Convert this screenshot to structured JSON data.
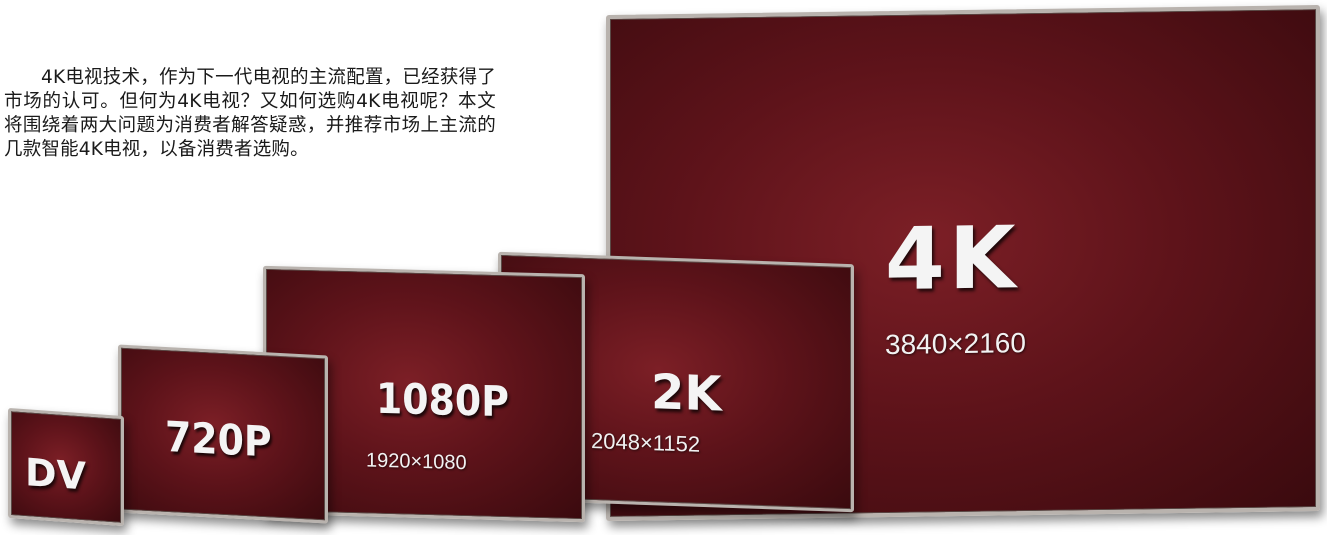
{
  "article": {
    "intro": "4K电视技术，作为下一代电视的主流配置，已经获得了市场的认可。但何为4K电视？又如何选购4K电视呢？本文将围绕着两大问题为消费者解答疑惑，并推荐市场上主流的几款智能4K电视，以备消费者选购。"
  },
  "figure": {
    "screens": [
      {
        "name": "DV",
        "resolution": ""
      },
      {
        "name": "720P",
        "resolution": ""
      },
      {
        "name": "1080P",
        "resolution": "1920×1080"
      },
      {
        "name": "2K",
        "resolution": "2048×1152"
      },
      {
        "name": "4K",
        "resolution": "3840×2160"
      }
    ],
    "colors": {
      "screen": "#5e131a",
      "bezel": "#b9b3ae"
    }
  }
}
